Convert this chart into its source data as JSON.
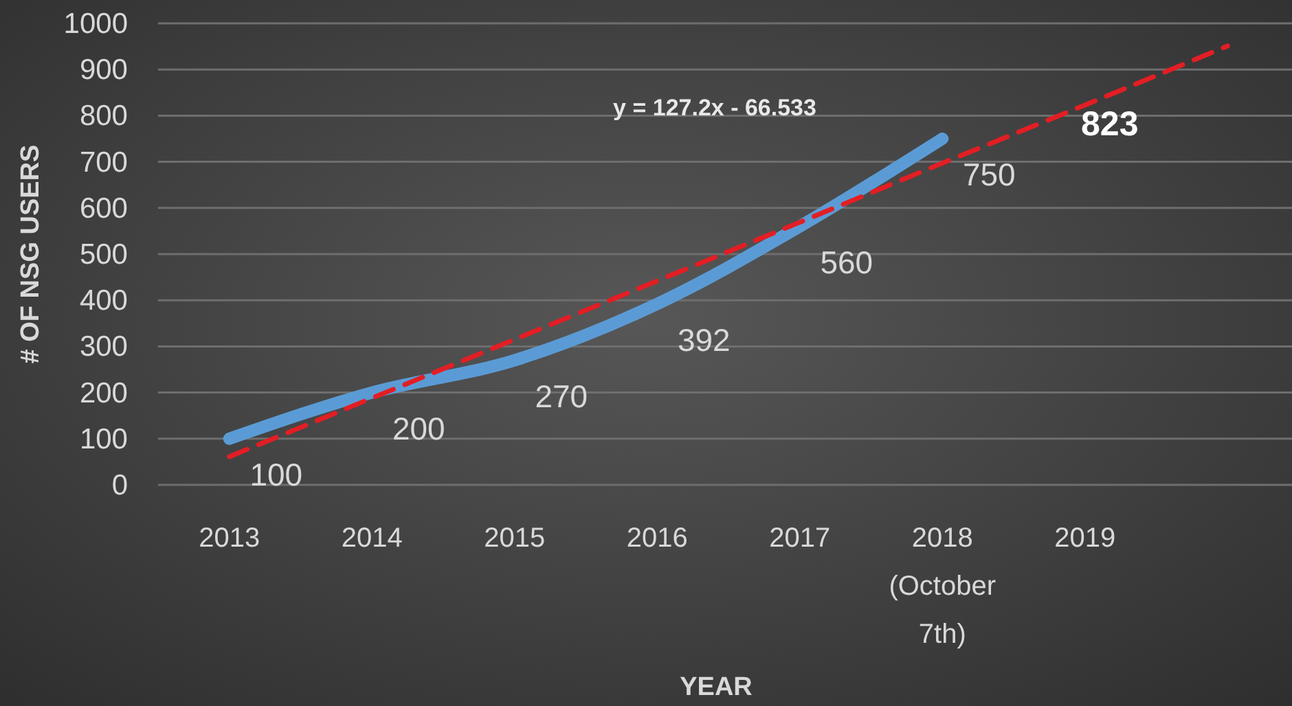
{
  "chart_data": {
    "type": "line",
    "xlabel": "YEAR",
    "ylabel": "# OF NSG USERS",
    "categories": [
      "2013",
      "2014",
      "2015",
      "2016",
      "2017",
      "2018 (October 7th)",
      "2019",
      null
    ],
    "series": [
      {
        "color": "#5b9bd5",
        "values": [
          100,
          200,
          270,
          392,
          560,
          750,
          null,
          null
        ],
        "value_labels": [
          "100",
          "200",
          "270",
          "392",
          "560",
          "750",
          null,
          null
        ],
        "line_style": "solid"
      },
      {
        "color": "#e31e24",
        "values": [
          61,
          188,
          315,
          442,
          569,
          697,
          823,
          951
        ],
        "value_labels": [
          null,
          null,
          null,
          null,
          null,
          null,
          "823",
          null
        ],
        "line_style": "dashed"
      }
    ],
    "annotations": [
      "y = 127.2x - 66.533"
    ],
    "ylim": [
      0,
      1000
    ],
    "yticks": [
      0,
      100,
      200,
      300,
      400,
      500,
      600,
      700,
      800,
      900,
      1000
    ],
    "grid": "y",
    "marker": "none"
  }
}
